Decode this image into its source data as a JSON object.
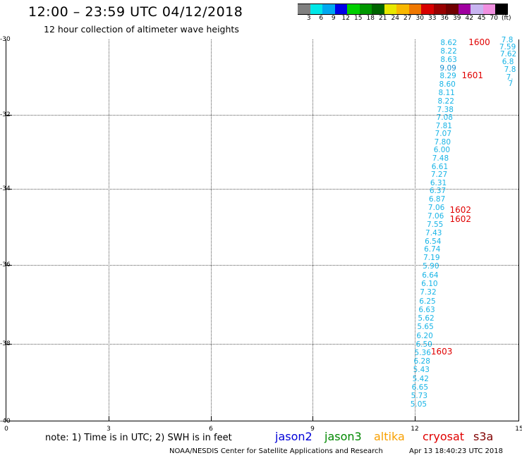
{
  "header": {
    "title": "12:00 – 23:59 UTC 04/12/2018",
    "subtitle": "12 hour collection of altimeter wave heights"
  },
  "colorbar": {
    "colors": [
      "#808080",
      "#00e8e8",
      "#00a8f0",
      "#0000e8",
      "#00d000",
      "#009800",
      "#006400",
      "#e8e800",
      "#f8b800",
      "#f07800",
      "#d80000",
      "#980000",
      "#700000",
      "#a000a0",
      "#c8b4f0",
      "#f090e0",
      "#000000"
    ],
    "labels": [
      "3",
      "6",
      "9",
      "12",
      "15",
      "18",
      "21",
      "24",
      "27",
      "30",
      "33",
      "36",
      "39",
      "42",
      "45",
      "70",
      "(ft)"
    ]
  },
  "axes": {
    "y_ticks": [
      "-30",
      "-32",
      "-34",
      "-36",
      "-38",
      "-40"
    ],
    "x_ticks": [
      "0",
      "3",
      "6",
      "9",
      "12",
      "15"
    ]
  },
  "observations": [
    {
      "t": 12.68,
      "lat": -30.1,
      "swh": "8.62"
    },
    {
      "t": 12.68,
      "lat": -30.32,
      "swh": "8.22"
    },
    {
      "t": 12.68,
      "lat": -30.54,
      "swh": "8.63"
    },
    {
      "t": 12.66,
      "lat": -30.76,
      "swh": "9.09"
    },
    {
      "t": 12.66,
      "lat": -30.98,
      "swh": "8.29"
    },
    {
      "t": 12.64,
      "lat": -31.2,
      "swh": "8.60"
    },
    {
      "t": 12.62,
      "lat": -31.42,
      "swh": "8.11"
    },
    {
      "t": 12.6,
      "lat": -31.64,
      "swh": "8.22"
    },
    {
      "t": 12.58,
      "lat": -31.86,
      "swh": "7.38"
    },
    {
      "t": 12.56,
      "lat": -32.08,
      "swh": "7.08"
    },
    {
      "t": 12.54,
      "lat": -32.3,
      "swh": "7.81"
    },
    {
      "t": 12.52,
      "lat": -32.52,
      "swh": "7.07"
    },
    {
      "t": 12.5,
      "lat": -32.74,
      "swh": "7.80"
    },
    {
      "t": 12.48,
      "lat": -32.96,
      "swh": "6.00"
    },
    {
      "t": 12.44,
      "lat": -33.18,
      "swh": "7.48"
    },
    {
      "t": 12.42,
      "lat": -33.4,
      "swh": "6.61"
    },
    {
      "t": 12.4,
      "lat": -33.62,
      "swh": "7.27"
    },
    {
      "t": 12.38,
      "lat": -33.84,
      "swh": "6.31"
    },
    {
      "t": 12.36,
      "lat": -34.06,
      "swh": "6.37"
    },
    {
      "t": 12.34,
      "lat": -34.28,
      "swh": "6.87"
    },
    {
      "t": 12.32,
      "lat": -34.5,
      "swh": "7.06"
    },
    {
      "t": 12.3,
      "lat": -34.72,
      "swh": "7.06"
    },
    {
      "t": 12.28,
      "lat": -34.94,
      "swh": "7.55"
    },
    {
      "t": 12.24,
      "lat": -35.16,
      "swh": "7.43"
    },
    {
      "t": 12.22,
      "lat": -35.38,
      "swh": "6.54"
    },
    {
      "t": 12.2,
      "lat": -35.6,
      "swh": "6.74"
    },
    {
      "t": 12.18,
      "lat": -35.82,
      "swh": "7.19"
    },
    {
      "t": 12.16,
      "lat": -36.04,
      "swh": "5.90"
    },
    {
      "t": 12.14,
      "lat": -36.26,
      "swh": "6.64"
    },
    {
      "t": 12.12,
      "lat": -36.48,
      "swh": "6.10"
    },
    {
      "t": 12.08,
      "lat": -36.7,
      "swh": "7.32"
    },
    {
      "t": 12.06,
      "lat": -36.92,
      "swh": "6.25"
    },
    {
      "t": 12.04,
      "lat": -37.14,
      "swh": "6.63"
    },
    {
      "t": 12.02,
      "lat": -37.36,
      "swh": "5.62"
    },
    {
      "t": 12.0,
      "lat": -37.58,
      "swh": "5.65"
    },
    {
      "t": 11.98,
      "lat": -37.8,
      "swh": "6.20"
    },
    {
      "t": 11.96,
      "lat": -38.02,
      "swh": "6.50"
    },
    {
      "t": 11.92,
      "lat": -38.24,
      "swh": "5.36"
    },
    {
      "t": 11.9,
      "lat": -38.46,
      "swh": "6.28"
    },
    {
      "t": 11.88,
      "lat": -38.68,
      "swh": "5.43"
    },
    {
      "t": 11.86,
      "lat": -38.9,
      "swh": "5.42"
    },
    {
      "t": 11.84,
      "lat": -39.12,
      "swh": "6.65"
    },
    {
      "t": 11.82,
      "lat": -39.34,
      "swh": "5.73"
    },
    {
      "t": 11.8,
      "lat": -39.56,
      "swh": "5.05"
    },
    {
      "t": 14.46,
      "lat": -30.02,
      "swh": "7.8"
    },
    {
      "t": 14.4,
      "lat": -30.2,
      "swh": "7.59"
    },
    {
      "t": 14.42,
      "lat": -30.4,
      "swh": "7.62"
    },
    {
      "t": 14.48,
      "lat": -30.6,
      "swh": "6.8"
    },
    {
      "t": 14.54,
      "lat": -30.8,
      "swh": "7.8"
    },
    {
      "t": 14.6,
      "lat": -31.0,
      "swh": "7."
    },
    {
      "t": 14.66,
      "lat": -31.18,
      "swh": "7"
    }
  ],
  "track_labels": [
    {
      "t": 13.5,
      "lat": -30.08,
      "text": "1600"
    },
    {
      "t": 13.3,
      "lat": -30.96,
      "text": "1601"
    },
    {
      "t": 12.95,
      "lat": -34.55,
      "text": "1602"
    },
    {
      "t": 12.95,
      "lat": -34.8,
      "text": "1602"
    },
    {
      "t": 12.4,
      "lat": -38.2,
      "text": "1603"
    }
  ],
  "footer": {
    "note": "note: 1) Time is in UTC; 2) SWH is in feet",
    "legend": [
      {
        "label": "jason2",
        "color": "#0000d8"
      },
      {
        "label": "jason3",
        "color": "#008800"
      },
      {
        "label": "altika",
        "color": "#f8a000"
      },
      {
        "label": "cryosat",
        "color": "#e00000"
      },
      {
        "label": "s3a",
        "color": "#800000"
      }
    ],
    "credit": "NOAA/NESDIS Center for Satellite Applications and Research",
    "timestamp": "Apr 13 18:40:23 UTC 2018"
  }
}
